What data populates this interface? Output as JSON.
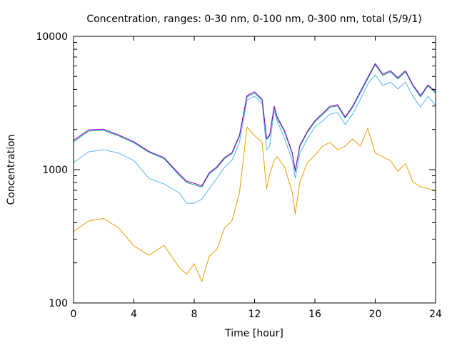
{
  "chart_data": {
    "type": "line",
    "title": "Concentration, ranges: 0-30 nm, 0-100 nm, 0-300 nm, total (5/9/1)",
    "xlabel": "Time [hour]",
    "ylabel": "Concentration",
    "xlim": [
      0,
      24
    ],
    "ylim": [
      100,
      10000
    ],
    "yscale": "log",
    "grid": false,
    "legend": "none",
    "x_ticks": [
      "0",
      "4",
      "8",
      "12",
      "16",
      "20",
      "24"
    ],
    "y_ticks": [
      "100",
      "1000",
      "10000"
    ],
    "x": [
      0,
      1,
      2,
      3,
      4,
      5,
      6,
      7,
      7.5,
      8,
      8.5,
      9,
      9.5,
      10,
      10.5,
      11,
      11.5,
      12,
      12.5,
      12.8,
      13,
      13.3,
      13.5,
      14,
      14.5,
      14.7,
      15,
      15.5,
      16,
      16.5,
      17,
      17.5,
      18,
      18.5,
      19,
      19.5,
      20,
      20.5,
      21,
      21.5,
      22,
      22.5,
      23,
      23.5,
      24
    ],
    "series": [
      {
        "name": "0-30 nm",
        "color": "#e69f00",
        "values": [
          343,
          412,
          430,
          365,
          268,
          228,
          270,
          185,
          164,
          197,
          145,
          224,
          252,
          365,
          412,
          674,
          2090,
          1800,
          1600,
          717,
          920,
          1170,
          1250,
          1040,
          674,
          466,
          810,
          1130,
          1280,
          1500,
          1600,
          1410,
          1500,
          1700,
          1500,
          2040,
          1330,
          1250,
          1170,
          975,
          1110,
          810,
          745,
          720,
          690
        ]
      },
      {
        "name": "0-100 nm",
        "color": "#56b4e9",
        "values": [
          1130,
          1360,
          1410,
          1330,
          1170,
          860,
          780,
          670,
          560,
          560,
          600,
          720,
          860,
          1040,
          1170,
          1600,
          3340,
          3550,
          3140,
          1410,
          1500,
          2780,
          2310,
          1700,
          1170,
          860,
          1330,
          1700,
          2090,
          2310,
          2610,
          2680,
          2180,
          2610,
          3340,
          4380,
          5140,
          4280,
          4550,
          4030,
          4550,
          3550,
          2950,
          3550,
          3030
        ]
      },
      {
        "name": "0-300 nm",
        "color": "#009e73",
        "values": [
          1620,
          1950,
          1970,
          1790,
          1590,
          1350,
          1210,
          910,
          800,
          770,
          740,
          930,
          1030,
          1210,
          1320,
          1780,
          3520,
          3750,
          3310,
          1690,
          1790,
          2930,
          2440,
          1900,
          1320,
          965,
          1490,
          1900,
          2290,
          2590,
          2930,
          3010,
          2440,
          2930,
          3750,
          4800,
          6130,
          5100,
          5420,
          4800,
          5420,
          4250,
          3520,
          4250,
          3750
        ]
      },
      {
        "name": "total",
        "color": "#9400d3",
        "values": [
          1660,
          1990,
          2010,
          1820,
          1620,
          1370,
          1230,
          930,
          820,
          790,
          755,
          950,
          1050,
          1230,
          1340,
          1820,
          3600,
          3840,
          3380,
          1720,
          1820,
          2990,
          2490,
          1940,
          1340,
          985,
          1520,
          1940,
          2330,
          2640,
          2990,
          3070,
          2490,
          2990,
          3840,
          4900,
          6260,
          5200,
          5530,
          4900,
          5530,
          4330,
          3600,
          4330,
          3840
        ]
      }
    ]
  }
}
